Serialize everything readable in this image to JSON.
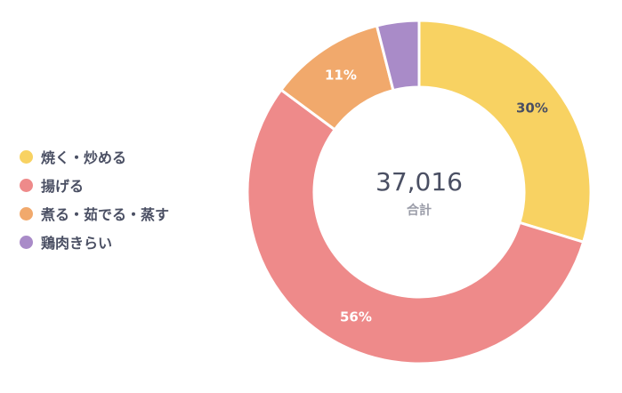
{
  "chart_data": {
    "type": "pie",
    "variant": "donut",
    "categories": [
      "焼く・炒める",
      "揚げる",
      "煮る・茹でる・蒸す",
      "鶏肉きらい"
    ],
    "values": [
      30,
      56,
      11,
      4
    ],
    "value_labels": [
      "30%",
      "56%",
      "11%",
      ""
    ],
    "colors": [
      "#f8d262",
      "#ee8a8a",
      "#f1a96c",
      "#a98bc8"
    ],
    "label_colors": [
      "#4a4f63",
      "#ffffff",
      "#ffffff",
      "#ffffff"
    ],
    "legend_position": "left",
    "center": {
      "total": "37,016",
      "caption": "合計"
    }
  }
}
